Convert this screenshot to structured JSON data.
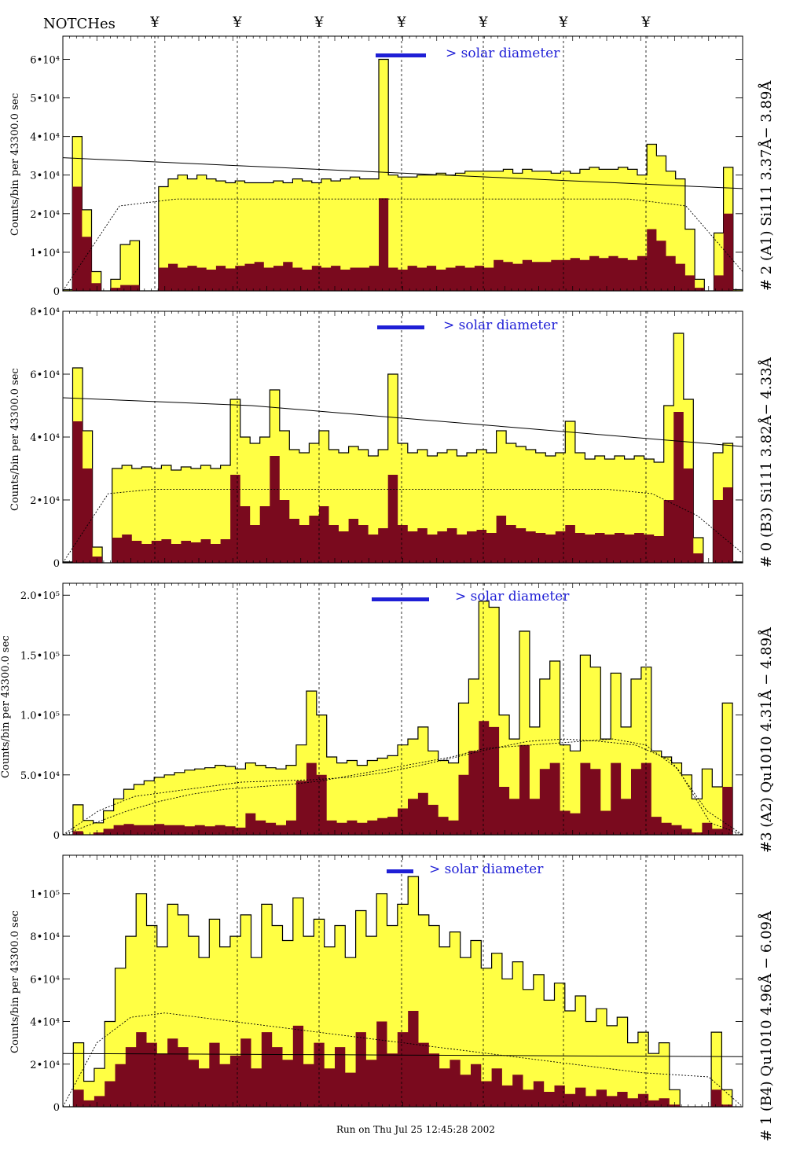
{
  "header": {
    "notches_label": "NOTCHes",
    "notch_symbol": "¥",
    "notch_count": 7
  },
  "footer": {
    "run_label": "Run on Thu Jul 25 12:45:28 2002"
  },
  "colors": {
    "fill_total": "#ffff44",
    "fill_component": "#7a0a1e",
    "marker": "#1f1fd6",
    "line": "#000000"
  },
  "chart_data": [
    {
      "type": "histogram",
      "panel": "#2 (A1) Si111 3.37Å−3.89Å",
      "right_label": "# 2 (A1) Si111  3.37Å− 3.89Å",
      "ylabel": "Counts/bin per  43300.0 sec",
      "annotation": "> solar diameter",
      "ylim": [
        0,
        66000
      ],
      "yticks": [
        {
          "value": 0,
          "label": "0"
        },
        {
          "value": 10000,
          "label": "1•10⁴"
        },
        {
          "value": 20000,
          "label": "2•10⁴"
        },
        {
          "value": 30000,
          "label": "3•10⁴"
        },
        {
          "value": 40000,
          "label": "4•10⁴"
        },
        {
          "value": 50000,
          "label": "5•10⁴"
        },
        {
          "value": 60000,
          "label": "6•10⁴"
        }
      ],
      "series": [
        {
          "name": "total",
          "values": [
            300,
            40000,
            21000,
            5000,
            0,
            3000,
            12000,
            13000,
            0,
            0,
            27000,
            29000,
            30000,
            29000,
            30000,
            29000,
            28500,
            28000,
            28500,
            28000,
            28000,
            28000,
            28500,
            28000,
            29000,
            28500,
            28000,
            29000,
            28500,
            29000,
            29500,
            29000,
            29000,
            60000,
            30000,
            29500,
            29500,
            30000,
            30000,
            30500,
            30000,
            30500,
            31000,
            31000,
            31000,
            31000,
            31500,
            30500,
            31500,
            31000,
            31000,
            30500,
            31000,
            30500,
            31500,
            32000,
            31500,
            31500,
            32000,
            31500,
            30000,
            38000,
            35000,
            31000,
            29000,
            16000,
            3000,
            0,
            15000,
            32000,
            300
          ]
        },
        {
          "name": "component",
          "values": [
            100,
            27000,
            14000,
            2000,
            0,
            800,
            1500,
            1500,
            0,
            0,
            6000,
            7000,
            6000,
            6500,
            6000,
            5500,
            6500,
            5800,
            6500,
            7000,
            7500,
            6000,
            6500,
            7500,
            6000,
            5500,
            6500,
            6000,
            6500,
            5500,
            6000,
            6000,
            6500,
            24000,
            6000,
            5500,
            6500,
            6000,
            6500,
            5500,
            6000,
            6500,
            6000,
            6500,
            6000,
            8000,
            7500,
            7000,
            8000,
            7500,
            7500,
            8000,
            8000,
            8500,
            8000,
            9000,
            8500,
            9000,
            8500,
            8000,
            9000,
            16000,
            13000,
            9000,
            7000,
            4000,
            800,
            0,
            4000,
            20000,
            100
          ]
        },
        {
          "name": "trend",
          "values": [
            34500,
            34000,
            33500,
            33000,
            32500,
            32000,
            31500,
            31000,
            30500,
            30000,
            29500,
            29000,
            28500,
            28000,
            27500,
            27000,
            26500
          ]
        },
        {
          "name": "dashed-model",
          "values": [
            0,
            22000,
            23800,
            23800,
            23800,
            23800,
            23800,
            23800,
            23800,
            23800,
            23800,
            22000,
            5000
          ]
        }
      ]
    },
    {
      "type": "histogram",
      "panel": "#0 (B3) Si111 3.82Å−4.33Å",
      "right_label": "# 0 (B3) Si111  3.82Å− 4.33Å",
      "ylabel": "Counts/bin per  43300.0 sec",
      "annotation": "> solar diameter",
      "ylim": [
        0,
        80000
      ],
      "yticks": [
        {
          "value": 0,
          "label": "0"
        },
        {
          "value": 20000,
          "label": "2•10⁴"
        },
        {
          "value": 40000,
          "label": "4•10⁴"
        },
        {
          "value": 60000,
          "label": "6•10⁴"
        },
        {
          "value": 80000,
          "label": "8•10⁴"
        }
      ],
      "series": [
        {
          "name": "total",
          "values": [
            300,
            62000,
            42000,
            5000,
            0,
            30000,
            31000,
            30000,
            30500,
            30000,
            31000,
            29500,
            30500,
            30000,
            31000,
            30000,
            31000,
            52000,
            40000,
            38000,
            40000,
            55000,
            42000,
            36000,
            35000,
            38000,
            42000,
            36000,
            35000,
            37000,
            36000,
            34000,
            36000,
            60000,
            38000,
            35000,
            36000,
            34000,
            35000,
            36000,
            34000,
            35000,
            36000,
            35000,
            42000,
            38000,
            37000,
            36000,
            35000,
            34000,
            35000,
            45000,
            35000,
            33000,
            34000,
            33000,
            34000,
            33000,
            34000,
            33000,
            32000,
            50000,
            73000,
            52000,
            8000,
            0,
            35000,
            38000,
            300
          ]
        },
        {
          "name": "component",
          "values": [
            100,
            45000,
            30000,
            2000,
            0,
            8000,
            9000,
            7000,
            6000,
            7000,
            7500,
            6000,
            7000,
            6500,
            7500,
            6000,
            7500,
            28000,
            18000,
            12000,
            18000,
            34000,
            20000,
            14000,
            12000,
            15000,
            18000,
            12000,
            10000,
            14000,
            12000,
            9000,
            11000,
            28000,
            12000,
            10000,
            11000,
            9000,
            10000,
            11000,
            9000,
            10000,
            10500,
            9500,
            15000,
            12000,
            11000,
            10000,
            9500,
            9000,
            10000,
            12000,
            9500,
            9000,
            9500,
            9000,
            9500,
            9000,
            9500,
            9000,
            8500,
            20000,
            48000,
            30000,
            3000,
            0,
            20000,
            24000,
            100
          ]
        },
        {
          "name": "trend",
          "values": [
            52500,
            52000,
            51500,
            51000,
            50500,
            50000,
            49000,
            48000,
            47000,
            46000,
            45000,
            44000,
            43000,
            42000,
            41000,
            40000,
            39000,
            38000,
            37000
          ]
        },
        {
          "name": "dashed-model",
          "values": [
            0,
            22000,
            23400,
            23400,
            23400,
            23400,
            23400,
            23400,
            23400,
            23400,
            23400,
            23400,
            23400,
            22000,
            15000,
            3000
          ]
        }
      ]
    },
    {
      "type": "histogram",
      "panel": "#3 (A2) Qu1010 4.31Å−4.89Å",
      "right_label": "#3 (A2) Qu1010  4.31Å − 4.89Å",
      "ylabel": "Counts/bin per  43300.0 sec",
      "annotation": "> solar diameter",
      "ylim": [
        0,
        210000
      ],
      "yticks": [
        {
          "value": 0,
          "label": "0"
        },
        {
          "value": 50000,
          "label": "5.0•10⁴"
        },
        {
          "value": 100000,
          "label": "1.0•10⁵"
        },
        {
          "value": 150000,
          "label": "1.5•10⁵"
        },
        {
          "value": 200000,
          "label": "2.0•10⁵"
        }
      ],
      "series": [
        {
          "name": "total",
          "values": [
            0,
            25000,
            12000,
            10000,
            20000,
            30000,
            38000,
            42000,
            45000,
            48000,
            50000,
            52000,
            54000,
            55000,
            56000,
            58000,
            57000,
            55000,
            60000,
            58000,
            56000,
            55000,
            58000,
            75000,
            120000,
            100000,
            65000,
            60000,
            62000,
            58000,
            62000,
            64000,
            66000,
            75000,
            80000,
            90000,
            70000,
            62000,
            60000,
            110000,
            130000,
            195000,
            190000,
            100000,
            80000,
            170000,
            90000,
            130000,
            145000,
            75000,
            70000,
            150000,
            140000,
            80000,
            135000,
            90000,
            130000,
            140000,
            70000,
            65000,
            60000,
            50000,
            30000,
            55000,
            40000,
            110000,
            0
          ]
        },
        {
          "name": "component",
          "values": [
            0,
            3000,
            0,
            2000,
            5000,
            8000,
            9000,
            8000,
            8000,
            9000,
            8000,
            8000,
            7000,
            8000,
            7000,
            8000,
            7000,
            6000,
            18000,
            12000,
            10000,
            8000,
            12000,
            45000,
            60000,
            50000,
            12000,
            10000,
            12000,
            10000,
            12000,
            14000,
            15000,
            22000,
            30000,
            35000,
            25000,
            15000,
            12000,
            50000,
            70000,
            95000,
            90000,
            40000,
            30000,
            75000,
            30000,
            55000,
            60000,
            20000,
            18000,
            60000,
            55000,
            20000,
            60000,
            30000,
            55000,
            60000,
            15000,
            10000,
            8000,
            5000,
            2000,
            10000,
            5000,
            40000,
            0
          ]
        },
        {
          "name": "dashed-model",
          "values": [
            0,
            20000,
            32000,
            36000,
            40000,
            44000,
            45000,
            46000,
            48000,
            52000,
            58000,
            65000,
            72000,
            78000,
            80000,
            78000,
            75000,
            62000,
            20000,
            0
          ]
        },
        {
          "name": "dashed-model-2",
          "values": [
            0,
            10000,
            20000,
            28000,
            34000,
            38000,
            40000,
            42000,
            45000,
            50000,
            55000,
            60000,
            65000,
            72000,
            74000,
            76000,
            78000,
            80000,
            75000,
            55000,
            10000,
            0
          ]
        }
      ]
    },
    {
      "type": "histogram",
      "panel": "#1 (B4) Qu1010 4.96Å−6.09Å",
      "right_label": "# 1 (B4) Qu1010 4.96Å − 6.09Å",
      "ylabel": "Counts/bin per  43300.0 sec",
      "annotation": "> solar diameter",
      "ylim": [
        0,
        118000
      ],
      "yticks": [
        {
          "value": 0,
          "label": "0"
        },
        {
          "value": 20000,
          "label": "2•10⁴"
        },
        {
          "value": 40000,
          "label": "4•10⁴"
        },
        {
          "value": 60000,
          "label": "6•10⁴"
        },
        {
          "value": 80000,
          "label": "8•10⁴"
        },
        {
          "value": 100000,
          "label": "1•10⁵"
        }
      ],
      "series": [
        {
          "name": "total",
          "values": [
            0,
            30000,
            12000,
            18000,
            40000,
            65000,
            80000,
            100000,
            85000,
            75000,
            95000,
            90000,
            80000,
            70000,
            88000,
            75000,
            80000,
            90000,
            70000,
            95000,
            85000,
            78000,
            98000,
            80000,
            88000,
            75000,
            85000,
            70000,
            92000,
            80000,
            100000,
            85000,
            95000,
            108000,
            90000,
            85000,
            75000,
            82000,
            70000,
            78000,
            65000,
            72000,
            60000,
            68000,
            55000,
            62000,
            50000,
            58000,
            45000,
            52000,
            40000,
            46000,
            38000,
            42000,
            30000,
            35000,
            25000,
            30000,
            8000,
            0,
            0,
            0,
            35000,
            8000,
            0
          ]
        },
        {
          "name": "component",
          "values": [
            0,
            8000,
            3000,
            5000,
            12000,
            20000,
            28000,
            35000,
            30000,
            25000,
            32000,
            28000,
            22000,
            18000,
            30000,
            20000,
            24000,
            32000,
            18000,
            35000,
            28000,
            22000,
            38000,
            20000,
            30000,
            18000,
            28000,
            16000,
            35000,
            22000,
            40000,
            25000,
            35000,
            45000,
            30000,
            25000,
            18000,
            22000,
            15000,
            20000,
            12000,
            18000,
            10000,
            15000,
            8000,
            12000,
            7000,
            10000,
            6000,
            9000,
            5000,
            8000,
            5000,
            7000,
            4000,
            6000,
            3000,
            4000,
            1000,
            0,
            0,
            0,
            8000,
            1000,
            0
          ]
        },
        {
          "name": "dashed-model",
          "values": [
            0,
            30000,
            42000,
            44000,
            42000,
            40000,
            38000,
            36000,
            34000,
            32000,
            30000,
            28000,
            26000,
            24000,
            22000,
            20000,
            18000,
            16000,
            15000,
            14000,
            0
          ]
        },
        {
          "name": "trend",
          "values": [
            25000,
            24900,
            24800,
            24700,
            24600,
            24500,
            24400,
            24300,
            24200,
            24100,
            24000,
            23900,
            23800,
            23700,
            23600,
            23500
          ]
        }
      ]
    }
  ]
}
